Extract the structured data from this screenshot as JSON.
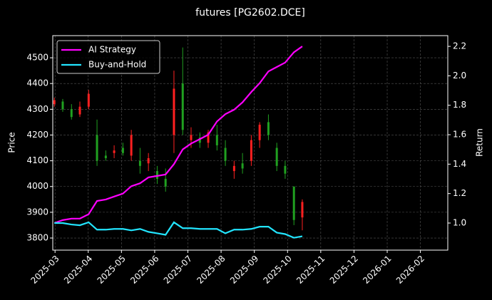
{
  "chart_data": {
    "type": "candlestick",
    "title": "futures [PG2602.DCE]",
    "y_label": "Price",
    "y2_label": "Return",
    "x": [
      2025.165,
      2025.186,
      2025.208,
      2025.229,
      2025.251,
      2025.272,
      2025.294,
      2025.315,
      2025.337,
      2025.358,
      2025.38,
      2025.401,
      2025.423,
      2025.444,
      2025.465,
      2025.487,
      2025.508,
      2025.53,
      2025.551,
      2025.573,
      2025.594,
      2025.616,
      2025.637,
      2025.659,
      2025.68,
      2025.702,
      2025.723,
      2025.744,
      2025.766,
      2025.787
    ],
    "open": [
      4320,
      4330,
      4300,
      4280,
      4310,
      4200,
      4120,
      4130,
      4150,
      4120,
      4100,
      4090,
      4060,
      4030,
      4200,
      4400,
      4180,
      4190,
      4170,
      4200,
      4150,
      4060,
      4090,
      4100,
      4180,
      4250,
      4150,
      4080,
      4000,
      3880
    ],
    "high": [
      4345,
      4340,
      4320,
      4330,
      4375,
      4260,
      4140,
      4160,
      4170,
      4220,
      4150,
      4130,
      4080,
      4070,
      4450,
      4540,
      4230,
      4210,
      4220,
      4240,
      4180,
      4100,
      4130,
      4200,
      4250,
      4280,
      4170,
      4100,
      4000,
      3950
    ],
    "low": [
      4310,
      4290,
      4260,
      4270,
      4300,
      4080,
      4100,
      4110,
      4120,
      4100,
      4050,
      4060,
      4010,
      3980,
      4130,
      4200,
      4150,
      4150,
      4150,
      4140,
      4080,
      4030,
      4050,
      4080,
      4150,
      4180,
      4060,
      4030,
      3850,
      3830
    ],
    "close": [
      4335,
      4300,
      4270,
      4310,
      4360,
      4100,
      4110,
      4140,
      4130,
      4200,
      4080,
      4110,
      4030,
      4000,
      4380,
      4220,
      4200,
      4170,
      4210,
      4160,
      4100,
      4080,
      4070,
      4180,
      4240,
      4200,
      4080,
      4050,
      3870,
      3940
    ],
    "up_color": "#ff2020",
    "down_color": "#20a020",
    "series": [
      {
        "name": "AI Strategy",
        "color": "#ff00ff",
        "axis": "y2",
        "values": [
          1.0,
          1.02,
          1.03,
          1.03,
          1.06,
          1.15,
          1.16,
          1.18,
          1.2,
          1.25,
          1.27,
          1.31,
          1.32,
          1.33,
          1.4,
          1.5,
          1.54,
          1.57,
          1.6,
          1.69,
          1.74,
          1.77,
          1.82,
          1.89,
          1.95,
          2.03,
          2.06,
          2.09,
          2.16,
          2.2
        ]
      },
      {
        "name": "Buy-and-Hold",
        "color": "#22e5ff",
        "axis": "y2",
        "values": [
          1.0,
          1.0,
          0.99,
          0.985,
          1.005,
          0.955,
          0.955,
          0.96,
          0.96,
          0.95,
          0.96,
          0.94,
          0.93,
          0.92,
          1.005,
          0.965,
          0.965,
          0.96,
          0.96,
          0.96,
          0.93,
          0.955,
          0.955,
          0.96,
          0.975,
          0.975,
          0.935,
          0.925,
          0.9,
          0.91
        ]
      }
    ],
    "xlim": [
      2025.161,
      2026.152
    ],
    "xticks": [
      {
        "value": 2025.1667,
        "label": "2025-03"
      },
      {
        "value": 2025.25,
        "label": "2025-04"
      },
      {
        "value": 2025.3333,
        "label": "2025-05"
      },
      {
        "value": 2025.4167,
        "label": "2025-06"
      },
      {
        "value": 2025.5,
        "label": "2025-07"
      },
      {
        "value": 2025.5833,
        "label": "2025-08"
      },
      {
        "value": 2025.6667,
        "label": "2025-09"
      },
      {
        "value": 2025.75,
        "label": "2025-10"
      },
      {
        "value": 2025.8333,
        "label": "2025-11"
      },
      {
        "value": 2025.9167,
        "label": "2025-12"
      },
      {
        "value": 2026.0,
        "label": "2026-01"
      },
      {
        "value": 2026.0833,
        "label": "2026-02"
      }
    ],
    "ylim": [
      3753,
      4586
    ],
    "yticks": [
      3800,
      3900,
      4000,
      4100,
      4200,
      4300,
      4400,
      4500
    ],
    "y2lim": [
      0.816,
      2.273
    ],
    "y2ticks": [
      {
        "value": 1.0,
        "label": "1.0"
      },
      1.2,
      1.4,
      1.6,
      1.8,
      {
        "value": 2.0,
        "label": "2.0"
      },
      2.2
    ],
    "grid": true,
    "legend": "upper left"
  }
}
